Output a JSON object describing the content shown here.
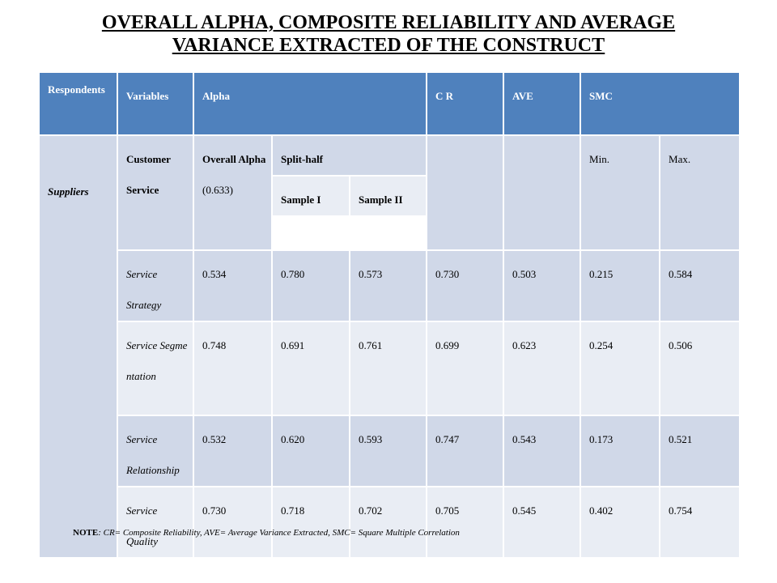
{
  "title": {
    "line1": "OVERALL ALPHA, COMPOSITE RELIABILITY AND AVERAGE",
    "line2": "VARIANCE EXTRACTED OF THE CONSTRUCT"
  },
  "header": {
    "respondents": "Respondents",
    "variables": "Variables",
    "alpha": "Alpha",
    "cr": "C R",
    "ave": "AVE",
    "smc": "SMC"
  },
  "subheader": {
    "respondent": "Suppliers",
    "variable": "Customer Service",
    "overall_alpha": "Overall Alpha",
    "overall_alpha_value": "(0.633)",
    "split_half": "Split-half",
    "sample1": "Sample I",
    "sample2": "Sample II",
    "min": "Min.",
    "max": "Max."
  },
  "rows": [
    {
      "variable": "Service Strategy",
      "alpha": "0.534",
      "s1": "0.780",
      "s2": "0.573",
      "cr": "0.730",
      "ave": "0.503",
      "min": "0.215",
      "max": "0.584"
    },
    {
      "variable": "Service Segmentation",
      "alpha": "0.748",
      "s1": "0.691",
      "s2": "0.761",
      "cr": "0.699",
      "ave": "0.623",
      "min": "0.254",
      "max": "0.506"
    },
    {
      "variable": "Service Relationship",
      "alpha": "0.532",
      "s1": "0.620",
      "s2": "0.593",
      "cr": "0.747",
      "ave": "0.543",
      "min": "0.173",
      "max": "0.521"
    },
    {
      "variable": "Service Quality",
      "alpha": "0.730",
      "s1": "0.718",
      "s2": "0.702",
      "cr": "0.705",
      "ave": "0.545",
      "min": "0.402",
      "max": "0.754"
    }
  ],
  "note": {
    "label": "NOTE",
    "text": ": CR= Composite Reliability, AVE= Average Variance Extracted, SMC= Square Multiple Correlation"
  }
}
